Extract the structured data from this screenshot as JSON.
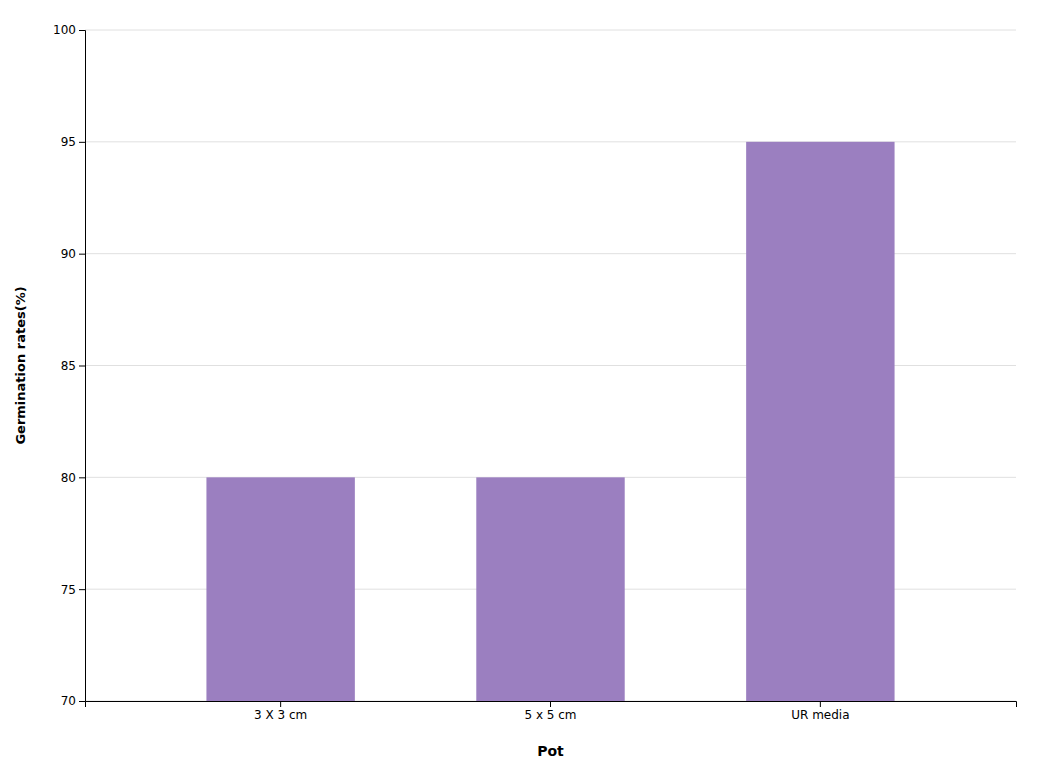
{
  "chart_data": {
    "type": "bar",
    "categories": [
      "3 X 3 cm",
      "5 x 5 cm",
      "UR media"
    ],
    "values": [
      80,
      80,
      95
    ],
    "color": "#9B7FC0",
    "xlabel": "Pot",
    "ylabel": "Germination rates(%)",
    "ylim": [
      70,
      100
    ],
    "yticks": [
      70,
      75,
      80,
      85,
      90,
      95,
      100
    ],
    "grid": true
  }
}
